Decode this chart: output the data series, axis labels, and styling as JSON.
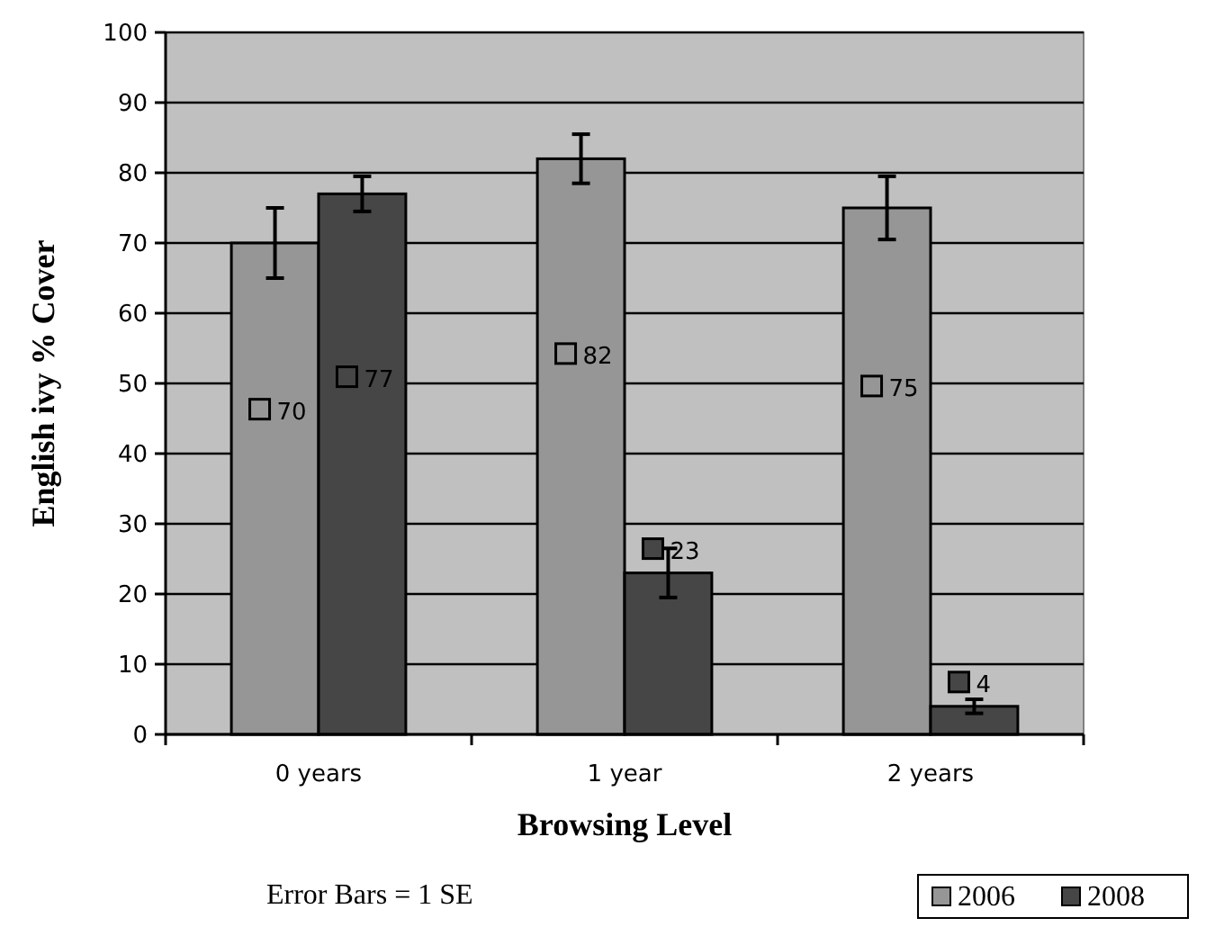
{
  "chart_data": {
    "type": "bar",
    "xlabel": "Browsing Level",
    "ylabel": "English ivy % Cover",
    "categories": [
      "0 years",
      "1 year",
      "2 years"
    ],
    "series": [
      {
        "name": "2006",
        "color": "#969696",
        "values": [
          70,
          82,
          75
        ],
        "errors": [
          5,
          3.5,
          4.5
        ]
      },
      {
        "name": "2008",
        "color": "#464646",
        "values": [
          77,
          23,
          4
        ],
        "errors": [
          2.5,
          3.5,
          1
        ]
      }
    ],
    "ylim": [
      0,
      100
    ],
    "yticks": [
      0,
      10,
      20,
      30,
      40,
      50,
      60,
      70,
      80,
      90,
      100
    ],
    "grid": "y",
    "legend": "bottom right",
    "data_labels": true,
    "annotations": [
      "Error Bars = 1 SE"
    ]
  }
}
